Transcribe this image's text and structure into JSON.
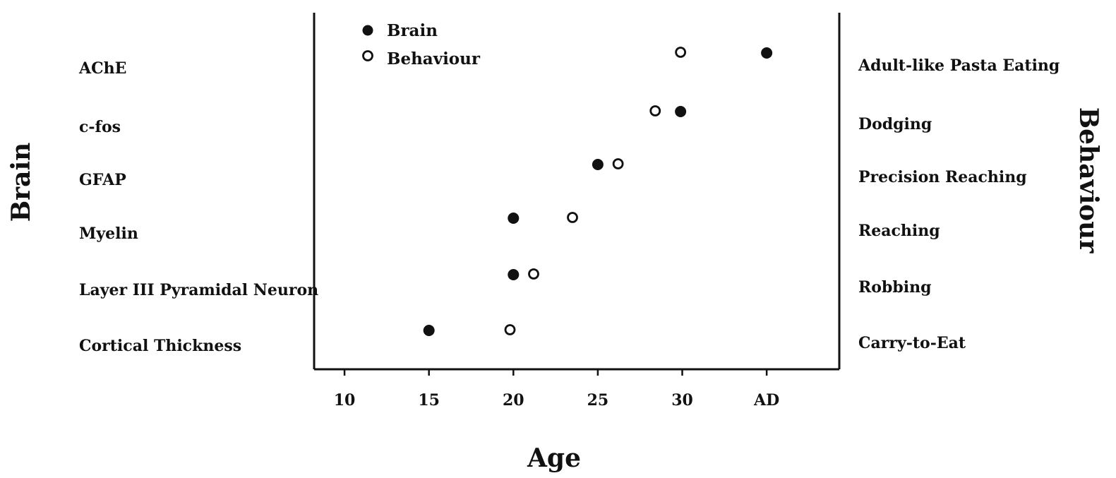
{
  "chart_data": {
    "type": "scatter",
    "title": "",
    "xlabel": "Age",
    "left_axis_title": "Brain",
    "right_axis_title": "Behaviour",
    "x_ticks": [
      {
        "value": 10,
        "label": "10"
      },
      {
        "value": 15,
        "label": "15"
      },
      {
        "value": 20,
        "label": "20"
      },
      {
        "value": 25,
        "label": "25"
      },
      {
        "value": 30,
        "label": "30"
      },
      {
        "value": 35,
        "label": "AD"
      }
    ],
    "xlim": [
      8.2,
      39.3
    ],
    "legend": {
      "position": "top-left",
      "entries": [
        {
          "name": "Brain",
          "marker": "filled-circle"
        },
        {
          "name": "Behaviour",
          "marker": "open-circle"
        }
      ]
    },
    "rows": [
      {
        "brain_label": "AChE",
        "behaviour_label": "Adult-like Pasta Eating",
        "brain_age": 35,
        "behaviour_age": 29.9
      },
      {
        "brain_label": "c-fos",
        "behaviour_label": "Dodging",
        "brain_age": 29.9,
        "behaviour_age": 28.4
      },
      {
        "brain_label": "GFAP",
        "behaviour_label": "Precision Reaching",
        "brain_age": 25,
        "behaviour_age": 26.2
      },
      {
        "brain_label": "Myelin",
        "behaviour_label": "Reaching",
        "brain_age": 20,
        "behaviour_age": 23.5
      },
      {
        "brain_label": "Layer III Pyramidal Neuron",
        "behaviour_label": "Robbing",
        "brain_age": 20,
        "behaviour_age": 21.2
      },
      {
        "brain_label": "Cortical Thickness",
        "behaviour_label": "Carry-to-Eat",
        "brain_age": 15,
        "behaviour_age": 19.8
      }
    ],
    "grid": false,
    "colors": {
      "marker": "#111111",
      "axis": "#111111",
      "background": "#ffffff"
    }
  }
}
